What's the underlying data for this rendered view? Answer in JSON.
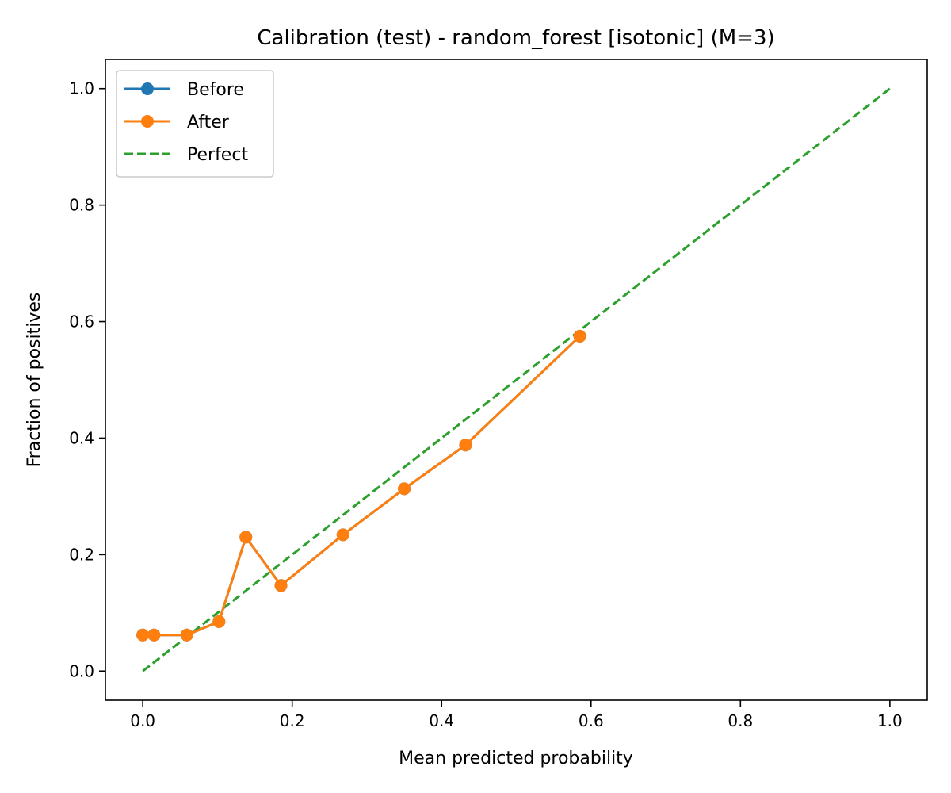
{
  "chart_data": {
    "type": "line",
    "title": "Calibration (test) - random_forest [isotonic] (M=3)",
    "xlabel": "Mean predicted probability",
    "ylabel": "Fraction of positives",
    "xlim": [
      -0.05,
      1.05
    ],
    "ylim": [
      -0.05,
      1.05
    ],
    "xticks": [
      0.0,
      0.2,
      0.4,
      0.6,
      0.8,
      1.0
    ],
    "yticks": [
      0.0,
      0.2,
      0.4,
      0.6,
      0.8,
      1.0
    ],
    "xtick_labels": [
      "0.0",
      "0.2",
      "0.4",
      "0.6",
      "0.8",
      "1.0"
    ],
    "ytick_labels": [
      "0.0",
      "0.2",
      "0.4",
      "0.6",
      "0.8",
      "1.0"
    ],
    "grid": false,
    "legend_position": "top-left",
    "series": [
      {
        "name": "Before",
        "style": "line-marker",
        "color": "#1f77b4",
        "x": [
          0.0,
          0.015,
          0.059,
          0.102,
          0.138,
          0.185,
          0.268,
          0.35,
          0.432,
          0.585
        ],
        "y": [
          0.062,
          0.062,
          0.062,
          0.085,
          0.23,
          0.147,
          0.234,
          0.313,
          0.388,
          0.575
        ]
      },
      {
        "name": "After",
        "style": "line-marker",
        "color": "#ff7f0e",
        "x": [
          0.0,
          0.015,
          0.059,
          0.102,
          0.138,
          0.185,
          0.268,
          0.35,
          0.432,
          0.585
        ],
        "y": [
          0.062,
          0.062,
          0.062,
          0.085,
          0.23,
          0.147,
          0.234,
          0.313,
          0.388,
          0.575
        ]
      },
      {
        "name": "Perfect",
        "style": "dashed",
        "color": "#2ca02c",
        "x": [
          0.0,
          1.0
        ],
        "y": [
          0.0,
          1.0
        ]
      }
    ]
  }
}
